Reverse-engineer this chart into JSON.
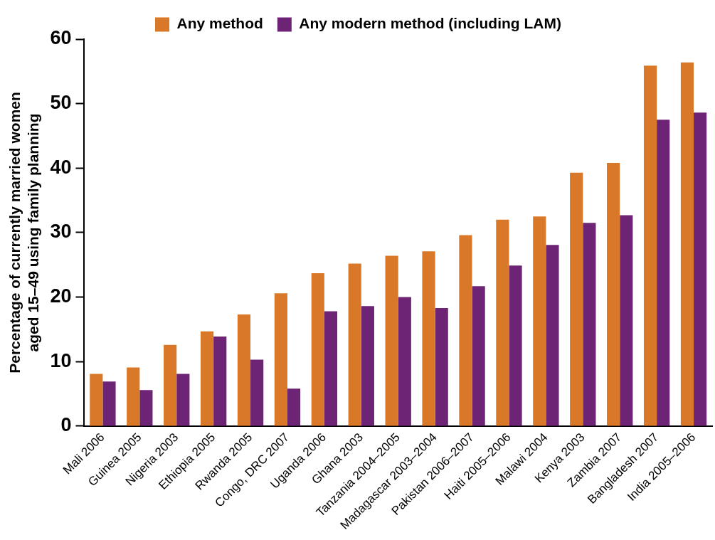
{
  "chart_data": {
    "type": "bar",
    "ylabel": "Percentage of currently married women aged 15–49 using family planning",
    "categories": [
      "Mali 2006",
      "Guinea 2005",
      "Nigeria 2003",
      "Ethiopia 2005",
      "Rwanda 2005",
      "Congo, DRC 2007",
      "Uganda 2006",
      "Ghana 2003",
      "Tanzania 2004–2005",
      "Madagascar 2003–2004",
      "Pakistan 2006–2007",
      "Haiti 2005–2006",
      "Malawi 2004",
      "Kenya 2003",
      "Zambia 2007",
      "Bangladesh 2007",
      "India 2005–2006"
    ],
    "series": [
      {
        "name": "Any method",
        "color": "#d97828",
        "values": [
          8.1,
          9.1,
          12.6,
          14.7,
          17.3,
          20.6,
          23.7,
          25.2,
          26.4,
          27.1,
          29.6,
          32.0,
          32.5,
          39.3,
          40.8,
          55.9,
          56.4
        ]
      },
      {
        "name": "Any modern method (including LAM)",
        "color": "#6e2474",
        "values": [
          6.9,
          5.6,
          8.1,
          13.9,
          10.3,
          5.8,
          17.8,
          18.6,
          20.0,
          18.3,
          21.7,
          24.9,
          28.1,
          31.5,
          32.7,
          47.5,
          48.6
        ]
      }
    ],
    "ylim": [
      0,
      60
    ],
    "yticks": [
      0,
      10,
      20,
      30,
      40,
      50,
      60
    ],
    "legend": "top"
  }
}
